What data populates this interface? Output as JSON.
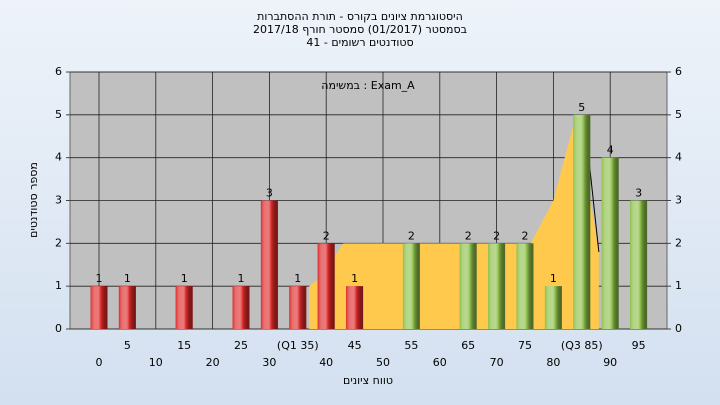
{
  "chart_data": {
    "type": "bar",
    "title": "היסטוגרמת ציונים בקורס - תורת ההסתברות",
    "subtitle": "בסמסטר (01/2017) סמסטר חורף 2017/18",
    "subtitle2": "סטודנטים רשומים - 41",
    "annotation": "במשימה : Exam_A",
    "x_label": "טווח ציונים",
    "y_label": "מספר סטודנטים",
    "categories": [
      "0",
      "5",
      "10",
      "15",
      "20",
      "25",
      "30",
      "(Q1 35)",
      "40",
      "45",
      "50",
      "55",
      "60",
      "65",
      "70",
      "75",
      "80",
      "(Q3 85)",
      "90",
      "95"
    ],
    "values": [
      1,
      1,
      0,
      1,
      0,
      1,
      3,
      1,
      2,
      1,
      0,
      2,
      0,
      2,
      2,
      2,
      1,
      5,
      4,
      3
    ],
    "bar_colors": [
      "#dd2a2a",
      "#dd2a2a",
      "#dd2a2a",
      "#dd2a2a",
      "#dd2a2a",
      "#dd2a2a",
      "#dd2a2a",
      "#dd2a2a",
      "#dd2a2a",
      "#dd2a2a",
      "#8dc04a",
      "#8dc04a",
      "#8dc04a",
      "#8dc04a",
      "#8dc04a",
      "#8dc04a",
      "#8dc04a",
      "#8dc04a",
      "#8dc04a",
      "#8dc04a"
    ],
    "area": {
      "color": "#ffc94d",
      "x": [
        37,
        39,
        43,
        76,
        80,
        84,
        88
      ],
      "y": [
        1,
        1.2,
        2,
        2,
        3,
        5,
        1.8
      ]
    },
    "ylim": [
      0,
      6
    ],
    "yticks": [
      0,
      1,
      2,
      3,
      4,
      5,
      6
    ],
    "y2lim": [
      0,
      6
    ],
    "y2ticks": [
      0,
      1,
      2,
      3,
      4,
      5,
      6
    ],
    "grid": true
  }
}
